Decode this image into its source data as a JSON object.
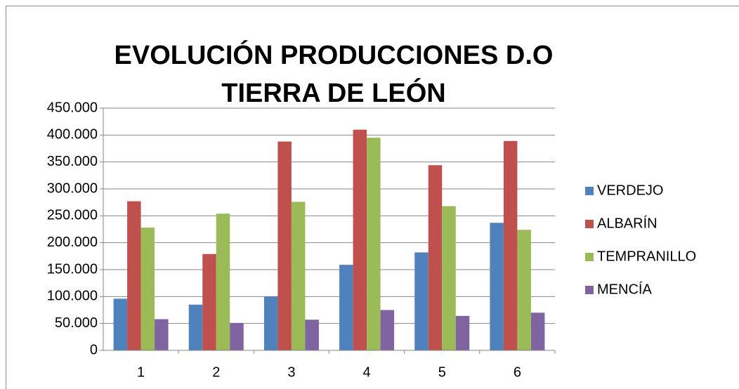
{
  "chart_data": {
    "type": "bar",
    "title": "EVOLUCIÓN PRODUCCIONES D.O TIERRA DE LEÓN",
    "categories": [
      "1",
      "2",
      "3",
      "4",
      "5",
      "6"
    ],
    "series": [
      {
        "name": "VERDEJO",
        "color": "#4f81bd",
        "values": [
          96000,
          85000,
          100000,
          159000,
          182000,
          237000
        ]
      },
      {
        "name": "ALBARÍN",
        "color": "#c0504d",
        "values": [
          277000,
          179000,
          388000,
          410000,
          344000,
          389000
        ]
      },
      {
        "name": "TEMPRANILLO",
        "color": "#9bbb59",
        "values": [
          228000,
          254000,
          276000,
          395000,
          268000,
          224000
        ]
      },
      {
        "name": "MENCÍA",
        "color": "#8064a2",
        "values": [
          58000,
          51000,
          57000,
          75000,
          64000,
          70000
        ]
      }
    ],
    "ylim": [
      0,
      450000
    ],
    "yticks": [
      0,
      {
        "value": 50000,
        "label": "50.000"
      },
      {
        "value": 100000,
        "label": "100.000"
      },
      {
        "value": 150000,
        "label": "150.000"
      },
      {
        "value": 200000,
        "label": "200.000"
      },
      {
        "value": 250000,
        "label": "250.000"
      },
      {
        "value": 300000,
        "label": "300.000"
      },
      {
        "value": 350000,
        "label": "350.000"
      },
      {
        "value": 400000,
        "label": "400.000"
      },
      {
        "value": 450000,
        "label": "450.000"
      }
    ],
    "grid": true,
    "legend": "right"
  }
}
